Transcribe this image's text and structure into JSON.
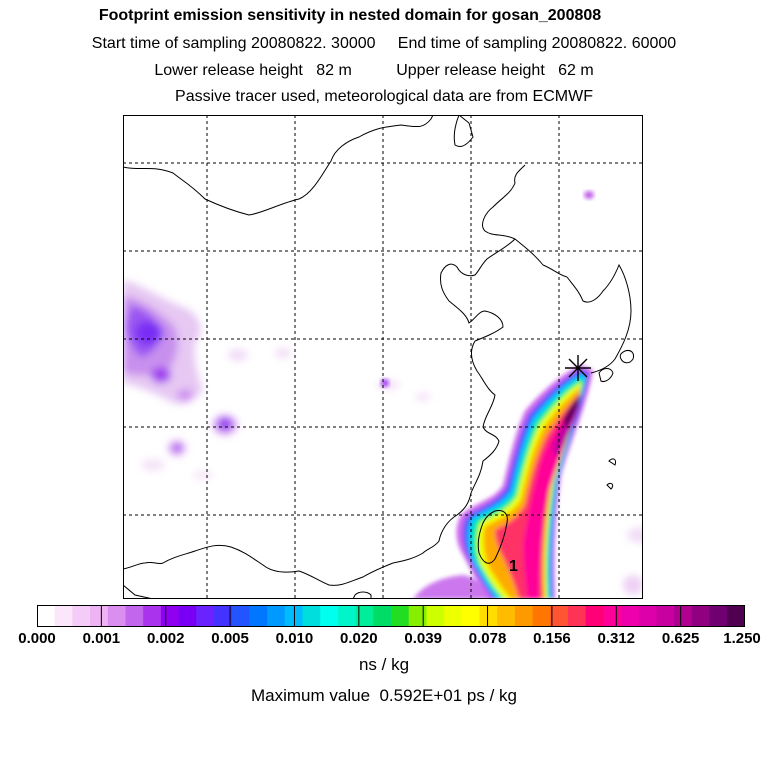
{
  "header": {
    "title": "Footprint emission sensitivity in nested domain for gosan_200808",
    "sampling_line": "Start time of sampling 20080822. 30000     End time of sampling 20080822. 60000",
    "release_line": "Lower release height   82 m          Upper release height   62 m",
    "tracer_line": "Passive tracer used, meteorological data are from ECMWF"
  },
  "map": {
    "plume_label": "1",
    "receptor_icon": "star-marker-icon",
    "colors": {
      "coast": "#000000",
      "grid": "#000000",
      "plume_core": "#5a0a4a"
    }
  },
  "colorbar": {
    "colors": [
      "#ffffff",
      "#fbe6fb",
      "#f5ccf7",
      "#eeb3f3",
      "#d98ef0",
      "#c266ee",
      "#aa33ee",
      "#8f00f0",
      "#7a00f5",
      "#6a22ff",
      "#4433ff",
      "#2255ff",
      "#0077ff",
      "#0099ff",
      "#00bbff",
      "#00dddd",
      "#00ffee",
      "#00f5c8",
      "#00ee99",
      "#00dd66",
      "#22dd22",
      "#88ee00",
      "#ccff00",
      "#eeff00",
      "#ffff00",
      "#ffdd00",
      "#ffbb00",
      "#ff9900",
      "#ff7700",
      "#ff5533",
      "#ff3355",
      "#ff0077",
      "#ff0099",
      "#ee00aa",
      "#dd00aa",
      "#c8009f",
      "#b00090",
      "#900080",
      "#700070",
      "#500050"
    ],
    "tick_labels": [
      "0.000",
      "0.001",
      "0.002",
      "0.005",
      "0.010",
      "0.020",
      "0.039",
      "0.078",
      "0.156",
      "0.312",
      "0.625",
      "1.250"
    ],
    "unit": "ns / kg"
  },
  "footer": {
    "maximum": "Maximum value  0.592E+01 ps / kg"
  }
}
